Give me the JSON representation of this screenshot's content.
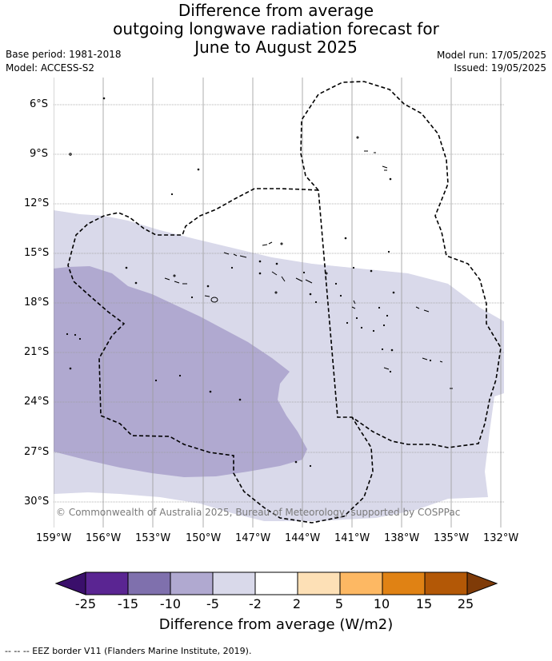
{
  "title": {
    "line1": "Difference from average",
    "line2": "outgoing longwave radiation forecast for",
    "line3": "June to August 2025"
  },
  "meta": {
    "base_period": "Base period: 1981-2018",
    "model": "Model: ACCESS-S2",
    "model_run": "Model run: 17/05/2025",
    "issued": "Issued: 19/05/2025"
  },
  "copyright": "© Commonwealth of Australia 2025, Bureau of Meteorology, supported by COSPPac",
  "colorbar": {
    "title": "Difference from average (W/m2)",
    "ticks": [
      "-25",
      "-15",
      "-10",
      "-5",
      "-2",
      "2",
      "5",
      "10",
      "15",
      "25"
    ],
    "colors": [
      "#3a0f6b",
      "#5a2592",
      "#7f70ad",
      "#b0a9d0",
      "#d9d9ea",
      "#ffffff",
      "#fde0b6",
      "#fdb863",
      "#e08214",
      "#b35806",
      "#7f3b08"
    ]
  },
  "footer": "--  --  -- EEZ border V11 (Flanders Marine Institute, 2019).",
  "map": {
    "lat_labels": [
      "6°S",
      "9°S",
      "12°S",
      "15°S",
      "18°S",
      "21°S",
      "24°S",
      "27°S",
      "30°S"
    ],
    "lon_labels": [
      "159°W",
      "156°W",
      "153°W",
      "150°W",
      "147°W",
      "144°W",
      "141°W",
      "138°W",
      "135°W",
      "132°W"
    ],
    "fill_colors": {
      "light": "#d9d9ea",
      "medium": "#b0a9d0"
    }
  }
}
